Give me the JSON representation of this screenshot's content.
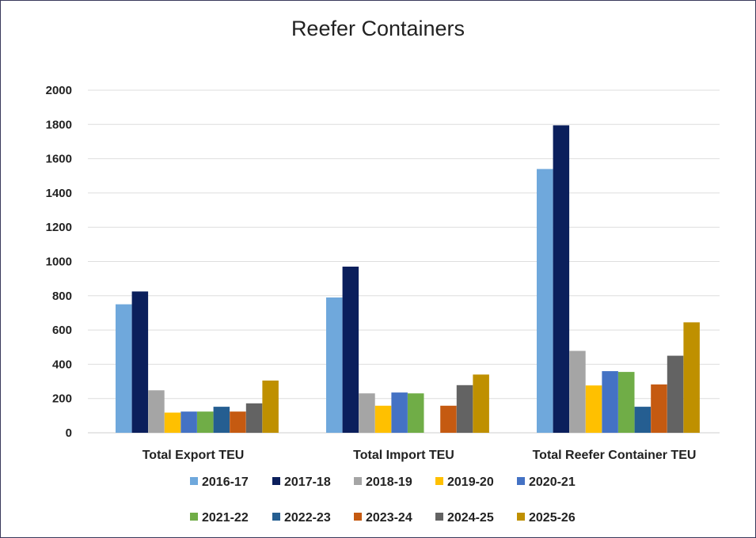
{
  "chart_data": {
    "type": "bar",
    "title": "Reefer Containers",
    "xlabel": "",
    "ylabel": "",
    "ylim": [
      0,
      2000
    ],
    "yticks": [
      0,
      200,
      400,
      600,
      800,
      1000,
      1200,
      1400,
      1600,
      1800,
      2000
    ],
    "grid": true,
    "legend_position": "bottom",
    "categories": [
      "Total Export TEU",
      "Total Import TEU",
      "Total Reefer Container TEU"
    ],
    "series": [
      {
        "name": "2016-17",
        "color": "#6fa8dc",
        "values": [
          750,
          790,
          1540
        ]
      },
      {
        "name": "2017-18",
        "color": "#0b1f5c",
        "values": [
          825,
          970,
          1795
        ]
      },
      {
        "name": "2018-19",
        "color": "#a5a5a5",
        "values": [
          248,
          230,
          478
        ]
      },
      {
        "name": "2019-20",
        "color": "#ffc000",
        "values": [
          118,
          158,
          276
        ]
      },
      {
        "name": "2020-21",
        "color": "#4472c4",
        "values": [
          124,
          235,
          360
        ]
      },
      {
        "name": "2021-22",
        "color": "#70ad47",
        "values": [
          124,
          230,
          355
        ]
      },
      {
        "name": "2022-23",
        "color": "#255e91",
        "values": [
          152,
          0,
          152
        ]
      },
      {
        "name": "2023-24",
        "color": "#c55a11",
        "values": [
          124,
          158,
          282
        ]
      },
      {
        "name": "2024-25",
        "color": "#636363",
        "values": [
          172,
          278,
          450
        ]
      },
      {
        "name": "2025-26",
        "color": "#bf9000",
        "values": [
          305,
          340,
          645
        ]
      }
    ]
  }
}
